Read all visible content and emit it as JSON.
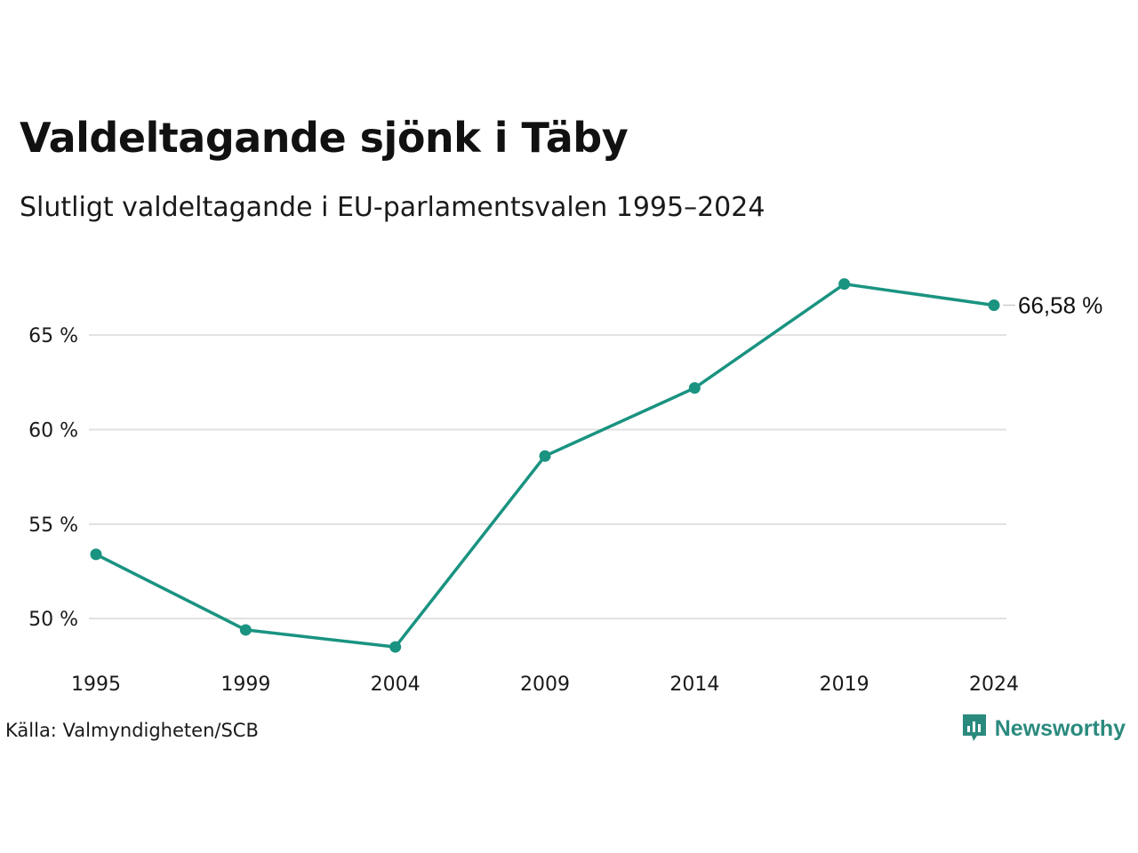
{
  "header": {
    "title": "Valdeltagande sjönk i Täby",
    "subtitle": "Slutligt valdeltagande i EU-parlamentsvalen 1995–2024"
  },
  "footer": {
    "source": "Källa: Valmyndigheten/SCB",
    "brand": "Newsworthy",
    "brand_icon": "newsworthy-logo-icon"
  },
  "colors": {
    "line": "#1a9381",
    "grid": "#e0e0e0",
    "brand": "#2b8a7e"
  },
  "chart_data": {
    "type": "line",
    "x": [
      1995,
      1999,
      2004,
      2009,
      2014,
      2019,
      2024
    ],
    "series": [
      {
        "values": [
          53.4,
          49.4,
          48.5,
          58.6,
          62.2,
          67.7,
          66.58
        ]
      }
    ],
    "y_ticks": [
      {
        "value": 50,
        "label": "50 %"
      },
      {
        "value": 55,
        "label": "55 %"
      },
      {
        "value": 60,
        "label": "60 %"
      },
      {
        "value": 65,
        "label": "65 %"
      }
    ],
    "x_tick_labels": [
      "1995",
      "1999",
      "2004",
      "2009",
      "2014",
      "2019",
      "2024"
    ],
    "end_label": "66,58 %",
    "ylim": [
      47,
      69
    ],
    "grid": true,
    "legend": "none"
  }
}
